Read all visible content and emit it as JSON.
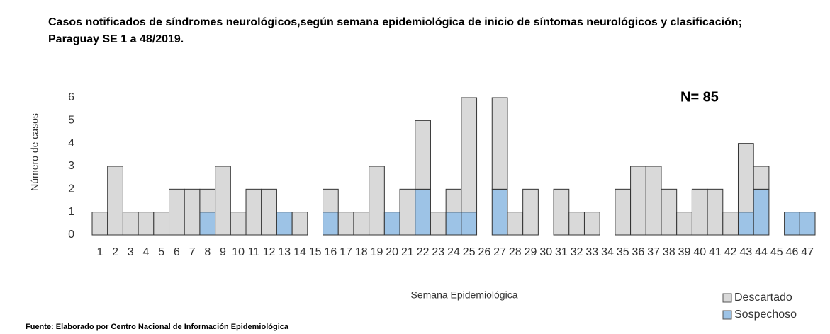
{
  "chart_data": {
    "type": "bar",
    "stacked": true,
    "title": "Casos notificados de síndromes neurológicos,según semana epidemiológica de inicio de síntomas neurológicos y clasificación; Paraguay SE 1 a 48/2019.",
    "annotation": "N= 85",
    "x_label": "Semana Epidemiológica",
    "y_label": "Número de casos",
    "source": "Fuente: Elaborado por Centro Nacional de Información  Epidemiológica",
    "categories": [
      "1",
      "2",
      "3",
      "4",
      "5",
      "6",
      "7",
      "8",
      "9",
      "10",
      "11",
      "12",
      "13",
      "14",
      "15",
      "16",
      "17",
      "18",
      "19",
      "20",
      "21",
      "22",
      "23",
      "24",
      "25",
      "26",
      "27",
      "28",
      "29",
      "30",
      "31",
      "32",
      "33",
      "34",
      "35",
      "36",
      "37",
      "38",
      "39",
      "40",
      "41",
      "42",
      "43",
      "44",
      "45",
      "46",
      "47"
    ],
    "series": [
      {
        "name": "Descartado",
        "color": "#d9d9d9",
        "values": [
          1,
          3,
          1,
          1,
          1,
          2,
          2,
          1,
          3,
          1,
          2,
          2,
          0,
          1,
          0,
          1,
          1,
          1,
          3,
          0,
          2,
          3,
          1,
          1,
          5,
          0,
          4,
          1,
          2,
          0,
          2,
          1,
          1,
          0,
          2,
          3,
          3,
          2,
          1,
          2,
          2,
          1,
          3,
          1,
          0,
          0,
          0
        ]
      },
      {
        "name": "Sospechoso",
        "color": "#9dc3e6",
        "values": [
          0,
          0,
          0,
          0,
          0,
          0,
          0,
          1,
          0,
          0,
          0,
          0,
          1,
          0,
          0,
          1,
          0,
          0,
          0,
          1,
          0,
          2,
          0,
          1,
          1,
          0,
          2,
          0,
          0,
          0,
          0,
          0,
          0,
          0,
          0,
          0,
          0,
          0,
          0,
          0,
          0,
          0,
          1,
          2,
          0,
          1,
          1
        ]
      }
    ],
    "ylim": [
      0,
      6
    ],
    "yticks": [
      0,
      1,
      2,
      3,
      4,
      5,
      6
    ],
    "grid": false
  }
}
